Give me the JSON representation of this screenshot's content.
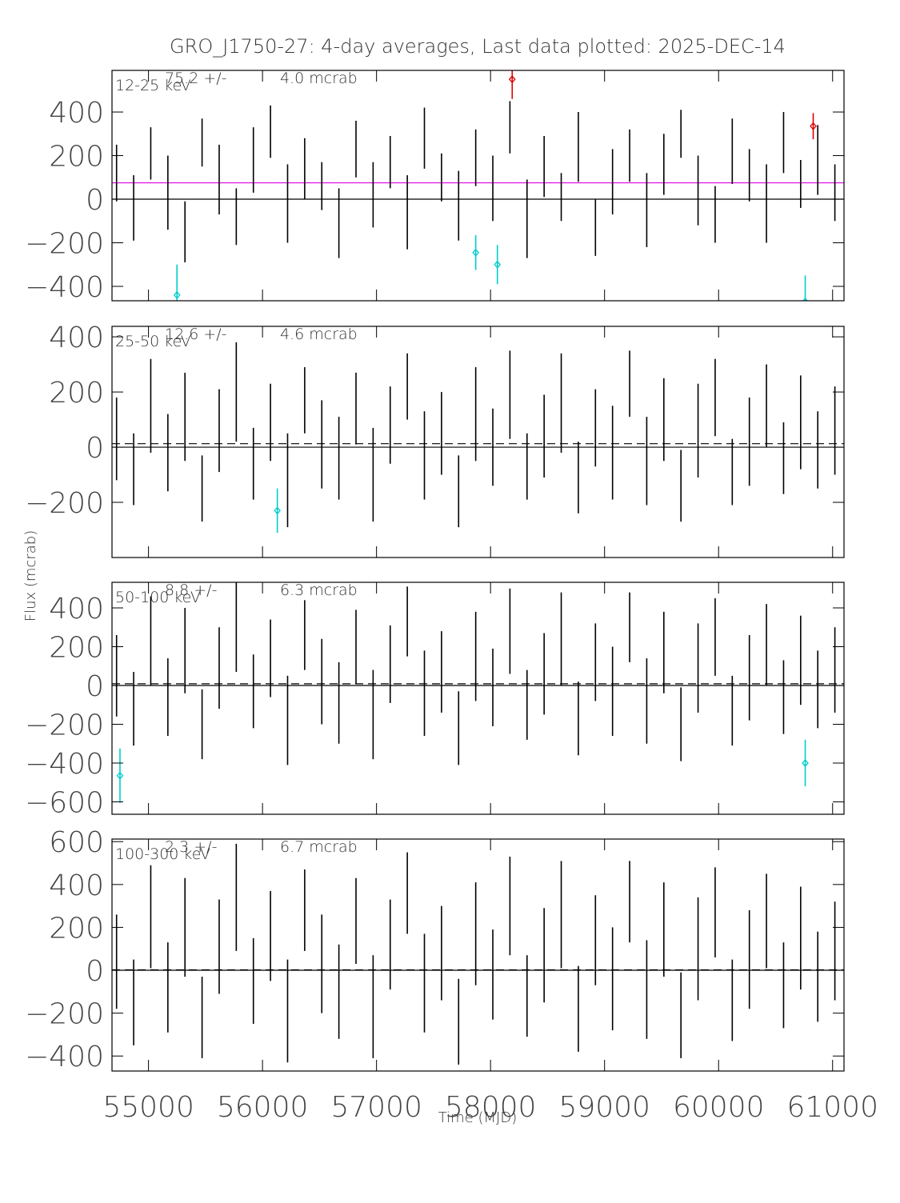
{
  "chart_data": {
    "type": "errorbar",
    "title": "GRO_J1750-27:  4-day averages,  Last data plotted: 2025-DEC-14",
    "x_label": "Time (MJD)",
    "y_label": "Flux (mcrab)",
    "xlim": [
      54680,
      61100
    ],
    "xticks": [
      55000,
      56000,
      57000,
      58000,
      59000,
      60000,
      61000
    ],
    "color": "#000000",
    "panels": [
      {
        "band": "12-25 keV",
        "stat_label": "75.2 +/-",
        "stat_error": "4.0 mcrab",
        "mean": 75.2,
        "mean_color": "#e000e0",
        "mean_style": "solid",
        "ylim": [
          -466,
          591
        ],
        "yticks": [
          -400,
          -200,
          0,
          200,
          400
        ],
        "x": [
          54720,
          54870,
          55020,
          55170,
          55320,
          55470,
          55620,
          55770,
          55920,
          56070,
          56220,
          56370,
          56520,
          56670,
          56820,
          56970,
          57120,
          57270,
          57420,
          57570,
          57720,
          57870,
          58020,
          58170,
          58320,
          58470,
          58620,
          58770,
          58920,
          59070,
          59220,
          59370,
          59520,
          59670,
          59820,
          59970,
          60120,
          60270,
          60420,
          60570,
          60720,
          60870,
          61020
        ],
        "values": [
          120,
          -40,
          210,
          30,
          -150,
          260,
          90,
          -80,
          180,
          310,
          -20,
          140,
          60,
          -110,
          230,
          20,
          170,
          -60,
          280,
          100,
          -30,
          190,
          50,
          330,
          -90,
          150,
          10,
          240,
          -130,
          80,
          200,
          -50,
          160,
          300,
          40,
          -70,
          220,
          110,
          -20,
          260,
          70,
          180,
          30
        ],
        "errors": [
          130,
          150,
          120,
          170,
          140,
          110,
          160,
          130,
          150,
          120,
          180,
          140,
          110,
          160,
          130,
          150,
          120,
          170,
          140,
          110,
          160,
          130,
          150,
          120,
          180,
          140,
          110,
          160,
          130,
          150,
          120,
          170,
          140,
          110,
          160,
          130,
          150,
          120,
          180,
          140,
          110,
          160,
          130
        ],
        "highlights": [
          {
            "color": "#00cccc",
            "x": [
              55250,
              57870,
              58060,
              60760
            ],
            "values": [
              -440,
              -245,
              -300,
              -470
            ],
            "errors": [
              140,
              80,
              90,
              120
            ]
          },
          {
            "color": "#dd0000",
            "x": [
              58190,
              60830
            ],
            "values": [
              550,
              335
            ],
            "errors": [
              90,
              60
            ]
          }
        ]
      },
      {
        "band": "25-50 keV",
        "stat_label": "12.6 +/-",
        "stat_error": "4.6 mcrab",
        "mean": 12.6,
        "mean_color": "#000000",
        "mean_style": "dashed",
        "ylim": [
          -400,
          438
        ],
        "yticks": [
          -200,
          0,
          200,
          400
        ],
        "x": [
          54720,
          54870,
          55020,
          55170,
          55320,
          55470,
          55620,
          55770,
          55920,
          56070,
          56220,
          56370,
          56520,
          56670,
          56820,
          56970,
          57120,
          57270,
          57420,
          57570,
          57720,
          57870,
          58020,
          58170,
          58320,
          58470,
          58620,
          58770,
          58920,
          59070,
          59220,
          59370,
          59520,
          59670,
          59820,
          59970,
          60120,
          60270,
          60420,
          60570,
          60720,
          60870,
          61020
        ],
        "values": [
          30,
          -80,
          150,
          -20,
          110,
          -150,
          60,
          200,
          -60,
          90,
          -120,
          170,
          10,
          -40,
          140,
          -100,
          80,
          220,
          -30,
          50,
          -160,
          120,
          0,
          190,
          -70,
          40,
          160,
          -110,
          70,
          -20,
          230,
          -50,
          100,
          -140,
          60,
          180,
          -90,
          20,
          150,
          -40,
          90,
          -10,
          60
        ],
        "errors": [
          150,
          130,
          170,
          140,
          160,
          120,
          150,
          180,
          130,
          140,
          170,
          120,
          160,
          150,
          130,
          170,
          140,
          120,
          160,
          150,
          130,
          170,
          140,
          160,
          120,
          150,
          180,
          130,
          140,
          170,
          120,
          160,
          150,
          130,
          170,
          140,
          120,
          160,
          150,
          130,
          170,
          140,
          160
        ],
        "highlights": [
          {
            "color": "#00cccc",
            "x": [
              56130
            ],
            "values": [
              -230
            ],
            "errors": [
              80
            ]
          }
        ]
      },
      {
        "band": "50-100 keV",
        "stat_label": "8.8 +/-",
        "stat_error": "6.3 mcrab",
        "mean": 8.8,
        "mean_color": "#000000",
        "mean_style": "dashed",
        "ylim": [
          -664,
          532
        ],
        "yticks": [
          -600,
          -400,
          -200,
          0,
          200,
          400
        ],
        "x": [
          54720,
          54870,
          55020,
          55170,
          55320,
          55470,
          55620,
          55770,
          55920,
          56070,
          56220,
          56370,
          56520,
          56670,
          56820,
          56970,
          57120,
          57270,
          57420,
          57570,
          57720,
          57870,
          58020,
          58170,
          58320,
          58470,
          58620,
          58770,
          58920,
          59070,
          59220,
          59370,
          59520,
          59670,
          59820,
          59970,
          60120,
          60270,
          60420,
          60570,
          60720,
          60870,
          61020
        ],
        "values": [
          50,
          -120,
          230,
          -60,
          180,
          -200,
          90,
          310,
          -30,
          140,
          -180,
          260,
          20,
          -90,
          200,
          -150,
          110,
          330,
          -40,
          70,
          -220,
          150,
          -10,
          280,
          -100,
          60,
          240,
          -170,
          120,
          -30,
          300,
          -80,
          170,
          -200,
          90,
          250,
          -130,
          40,
          210,
          -60,
          130,
          -20,
          80
        ],
        "errors": [
          210,
          190,
          230,
          200,
          220,
          180,
          210,
          240,
          190,
          200,
          230,
          180,
          220,
          210,
          190,
          230,
          200,
          180,
          220,
          210,
          190,
          230,
          200,
          220,
          180,
          210,
          240,
          190,
          200,
          230,
          180,
          220,
          210,
          190,
          230,
          200,
          180,
          220,
          210,
          190,
          230,
          200,
          220
        ],
        "highlights": [
          {
            "color": "#00cccc",
            "x": [
              54750,
              60760
            ],
            "values": [
              -465,
              -400
            ],
            "errors": [
              140,
              120
            ]
          }
        ]
      },
      {
        "band": "100-300 keV",
        "stat_label": "2.3 +/-",
        "stat_error": "6.7 mcrab",
        "mean": 2.3,
        "mean_color": "#000000",
        "mean_style": "dashed",
        "ylim": [
          -470,
          612
        ],
        "yticks": [
          -400,
          -200,
          0,
          200,
          400,
          600
        ],
        "x": [
          54720,
          54870,
          55020,
          55170,
          55320,
          55470,
          55620,
          55770,
          55920,
          56070,
          56220,
          56370,
          56520,
          56670,
          56820,
          56970,
          57120,
          57270,
          57420,
          57570,
          57720,
          57870,
          58020,
          58170,
          58320,
          58470,
          58620,
          58770,
          58920,
          59070,
          59220,
          59370,
          59520,
          59670,
          59820,
          59970,
          60120,
          60270,
          60420,
          60570,
          60720,
          60870,
          61020
        ],
        "values": [
          40,
          -150,
          250,
          -80,
          200,
          -220,
          110,
          340,
          -50,
          160,
          -190,
          280,
          30,
          -100,
          230,
          -170,
          120,
          360,
          -60,
          80,
          -240,
          170,
          -20,
          300,
          -120,
          70,
          260,
          -180,
          140,
          -40,
          320,
          -90,
          190,
          -210,
          100,
          270,
          -140,
          50,
          230,
          -70,
          150,
          -30,
          90
        ],
        "errors": [
          220,
          200,
          240,
          210,
          230,
          190,
          220,
          250,
          200,
          210,
          240,
          190,
          230,
          220,
          200,
          240,
          210,
          190,
          230,
          220,
          200,
          240,
          210,
          230,
          190,
          220,
          250,
          200,
          210,
          240,
          190,
          230,
          220,
          200,
          240,
          210,
          190,
          230,
          220,
          200,
          240,
          210,
          230
        ],
        "highlights": []
      }
    ]
  }
}
